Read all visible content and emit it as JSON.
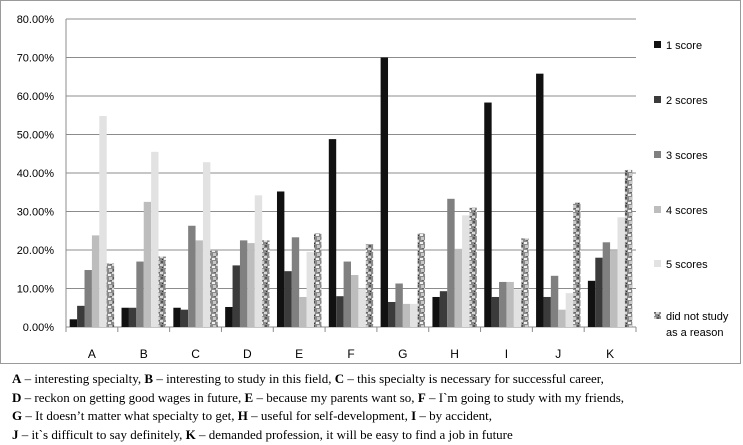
{
  "chart_data": {
    "type": "bar",
    "categories": [
      "A",
      "B",
      "C",
      "D",
      "E",
      "F",
      "G",
      "H",
      "I",
      "J",
      "K"
    ],
    "ylim": [
      0,
      80
    ],
    "yticks": [
      "0.00%",
      "10.00%",
      "20.00%",
      "30.00%",
      "40.00%",
      "50.00%",
      "60.00%",
      "70.00%",
      "80.00%"
    ],
    "grid": true,
    "legend_position": "right",
    "series": [
      {
        "name": "1 score",
        "color": "#111111",
        "pattern": "solid",
        "values": [
          2,
          5,
          5,
          5.2,
          35.2,
          48.8,
          70,
          7.8,
          58.3,
          65.8,
          12
        ]
      },
      {
        "name": "2 scores",
        "color": "#3b3b3b",
        "pattern": "solid",
        "values": [
          5.5,
          5,
          4.5,
          16,
          14.5,
          8,
          6.5,
          9.3,
          7.8,
          7.8,
          18
        ]
      },
      {
        "name": "3 scores",
        "color": "#808080",
        "pattern": "solid",
        "values": [
          14.8,
          17,
          26.3,
          22.5,
          23.3,
          17,
          11.3,
          33.3,
          11.7,
          13.3,
          22
        ]
      },
      {
        "name": "4 scores",
        "color": "#bdbdbd",
        "pattern": "solid",
        "values": [
          23.8,
          32.5,
          22.5,
          21.8,
          7.8,
          13.5,
          6,
          20.3,
          11.7,
          4.5,
          19.8
        ]
      },
      {
        "name": "5 scores",
        "color": "#e2e2e2",
        "pattern": "solid",
        "values": [
          54.8,
          45.5,
          42.8,
          34.2,
          19.5,
          10,
          6,
          29,
          9.8,
          8.8,
          28.5
        ]
      },
      {
        "name": "did not study as a reason",
        "legend_lines": [
          "did not study",
          "as a reason"
        ],
        "color": "#9a9a9a",
        "pattern": "marble",
        "values": [
          16.5,
          18.3,
          19.8,
          22.5,
          24.3,
          21.5,
          24.3,
          31,
          23,
          32.3,
          40.8
        ]
      }
    ]
  },
  "caption": {
    "line1": [
      {
        "k": "A",
        "t": " – interesting specialty, "
      },
      {
        "k": "B",
        "t": " – interesting to study in this field, "
      },
      {
        "k": "C",
        "t": " – this specialty is necessary for successful career,"
      }
    ],
    "line2": [
      {
        "k": "D",
        "t": " – reckon on getting good wages in future, "
      },
      {
        "k": "E",
        "t": " – because my parents want so, "
      },
      {
        "k": "F",
        "t": " – I`m going to study with my friends,"
      }
    ],
    "line3": [
      {
        "k": "G",
        "t": " – It doesn’t matter what specialty to get, "
      },
      {
        "k": "H",
        "t": " – useful for self-development, "
      },
      {
        "k": "I",
        "t": " – by accident,"
      }
    ],
    "line4": [
      {
        "k": "J",
        "t": " – it`s difficult to say definitely, "
      },
      {
        "k": "K",
        "t": " – demanded profession, it will be easy to find a job in future"
      }
    ]
  }
}
